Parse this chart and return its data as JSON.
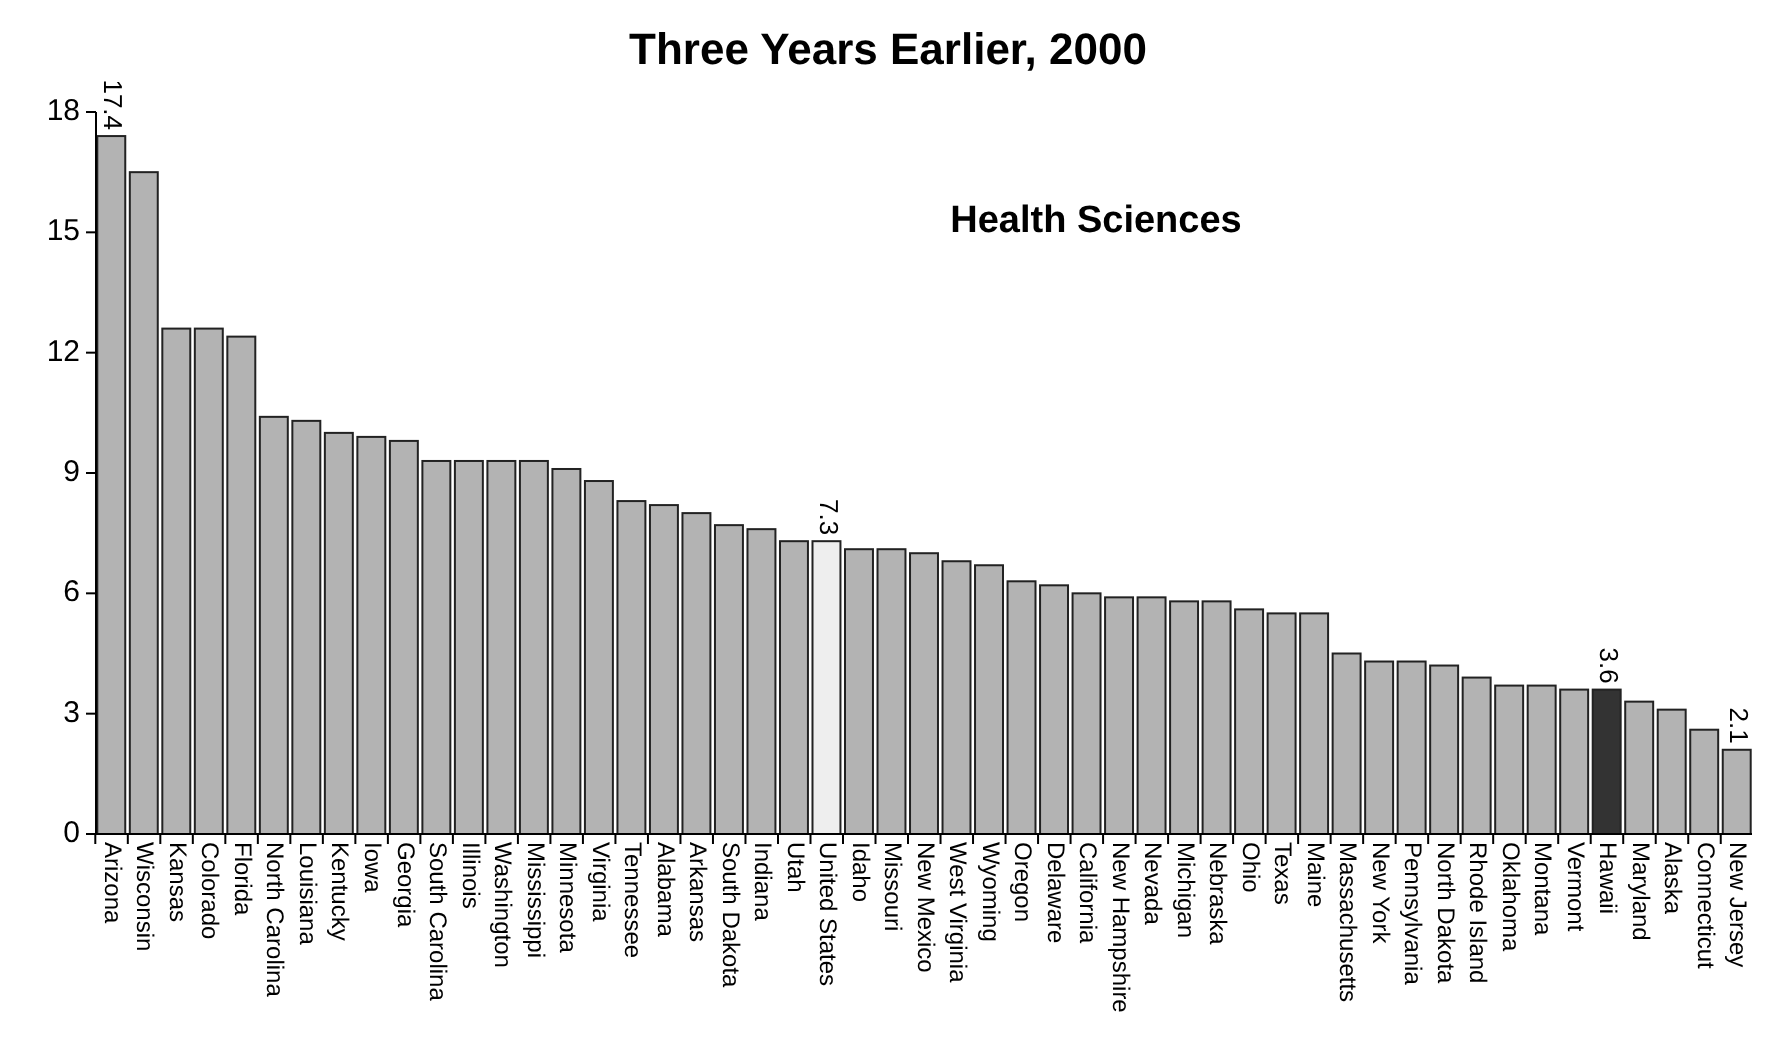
{
  "chart_data": {
    "type": "bar",
    "title": "Three Years Earlier, 2000",
    "annotations": [
      "Health Sciences"
    ],
    "categories": [
      "Arizona",
      "Wisconsin",
      "Kansas",
      "Colorado",
      "Florida",
      "North Carolina",
      "Louisiana",
      "Kentucky",
      "Iowa",
      "Georgia",
      "South Carolina",
      "Illinois",
      "Washington",
      "Mississippi",
      "Minnesota",
      "Virginia",
      "Tennessee",
      "Alabama",
      "Arkansas",
      "South Dakota",
      "Indiana",
      "Utah",
      "United States",
      "Idaho",
      "Missouri",
      "New Mexico",
      "West Virginia",
      "Wyoming",
      "Oregon",
      "Delaware",
      "California",
      "New Hampshire",
      "Nevada",
      "Michigan",
      "Nebraska",
      "Ohio",
      "Texas",
      "Maine",
      "Massachusetts",
      "New York",
      "Pennsylvania",
      "North Dakota",
      "Rhode Island",
      "Oklahoma",
      "Montana",
      "Vermont",
      "Hawaii",
      "Maryland",
      "Alaska",
      "Connecticut",
      "New Jersey"
    ],
    "values": [
      17.4,
      16.5,
      12.6,
      12.6,
      12.4,
      10.4,
      10.3,
      10.0,
      9.9,
      9.8,
      9.3,
      9.3,
      9.3,
      9.3,
      9.1,
      8.8,
      8.3,
      8.2,
      8.0,
      7.7,
      7.6,
      7.3,
      7.3,
      7.1,
      7.1,
      7.0,
      6.8,
      6.7,
      6.3,
      6.2,
      6.0,
      5.9,
      5.9,
      5.8,
      5.8,
      5.6,
      5.5,
      5.5,
      4.5,
      4.3,
      4.3,
      4.2,
      3.9,
      3.7,
      3.7,
      3.6,
      3.6,
      3.3,
      3.1,
      2.6,
      2.1
    ],
    "colors": [
      "#b3b3b3",
      "#b3b3b3",
      "#b3b3b3",
      "#b3b3b3",
      "#b3b3b3",
      "#b3b3b3",
      "#b3b3b3",
      "#b3b3b3",
      "#b3b3b3",
      "#b3b3b3",
      "#b3b3b3",
      "#b3b3b3",
      "#b3b3b3",
      "#b3b3b3",
      "#b3b3b3",
      "#b3b3b3",
      "#b3b3b3",
      "#b3b3b3",
      "#b3b3b3",
      "#b3b3b3",
      "#b3b3b3",
      "#b3b3b3",
      "#eeeeee",
      "#b3b3b3",
      "#b3b3b3",
      "#b3b3b3",
      "#b3b3b3",
      "#b3b3b3",
      "#b3b3b3",
      "#b3b3b3",
      "#b3b3b3",
      "#b3b3b3",
      "#b3b3b3",
      "#b3b3b3",
      "#b3b3b3",
      "#b3b3b3",
      "#b3b3b3",
      "#b3b3b3",
      "#b3b3b3",
      "#b3b3b3",
      "#b3b3b3",
      "#b3b3b3",
      "#b3b3b3",
      "#b3b3b3",
      "#b3b3b3",
      "#b3b3b3",
      "#333333",
      "#b3b3b3",
      "#b3b3b3",
      "#b3b3b3",
      "#b3b3b3"
    ],
    "value_labels": [
      "17.4",
      null,
      null,
      null,
      null,
      null,
      null,
      null,
      null,
      null,
      null,
      null,
      null,
      null,
      null,
      null,
      null,
      null,
      null,
      null,
      null,
      null,
      "7.3",
      null,
      null,
      null,
      null,
      null,
      null,
      null,
      null,
      null,
      null,
      null,
      null,
      null,
      null,
      null,
      null,
      null,
      null,
      null,
      null,
      null,
      null,
      null,
      "3.6",
      null,
      null,
      null,
      "2.1"
    ],
    "ylim": [
      0,
      18
    ],
    "yticks": [
      0,
      3,
      6,
      9,
      12,
      15,
      18
    ],
    "grid": false
  }
}
